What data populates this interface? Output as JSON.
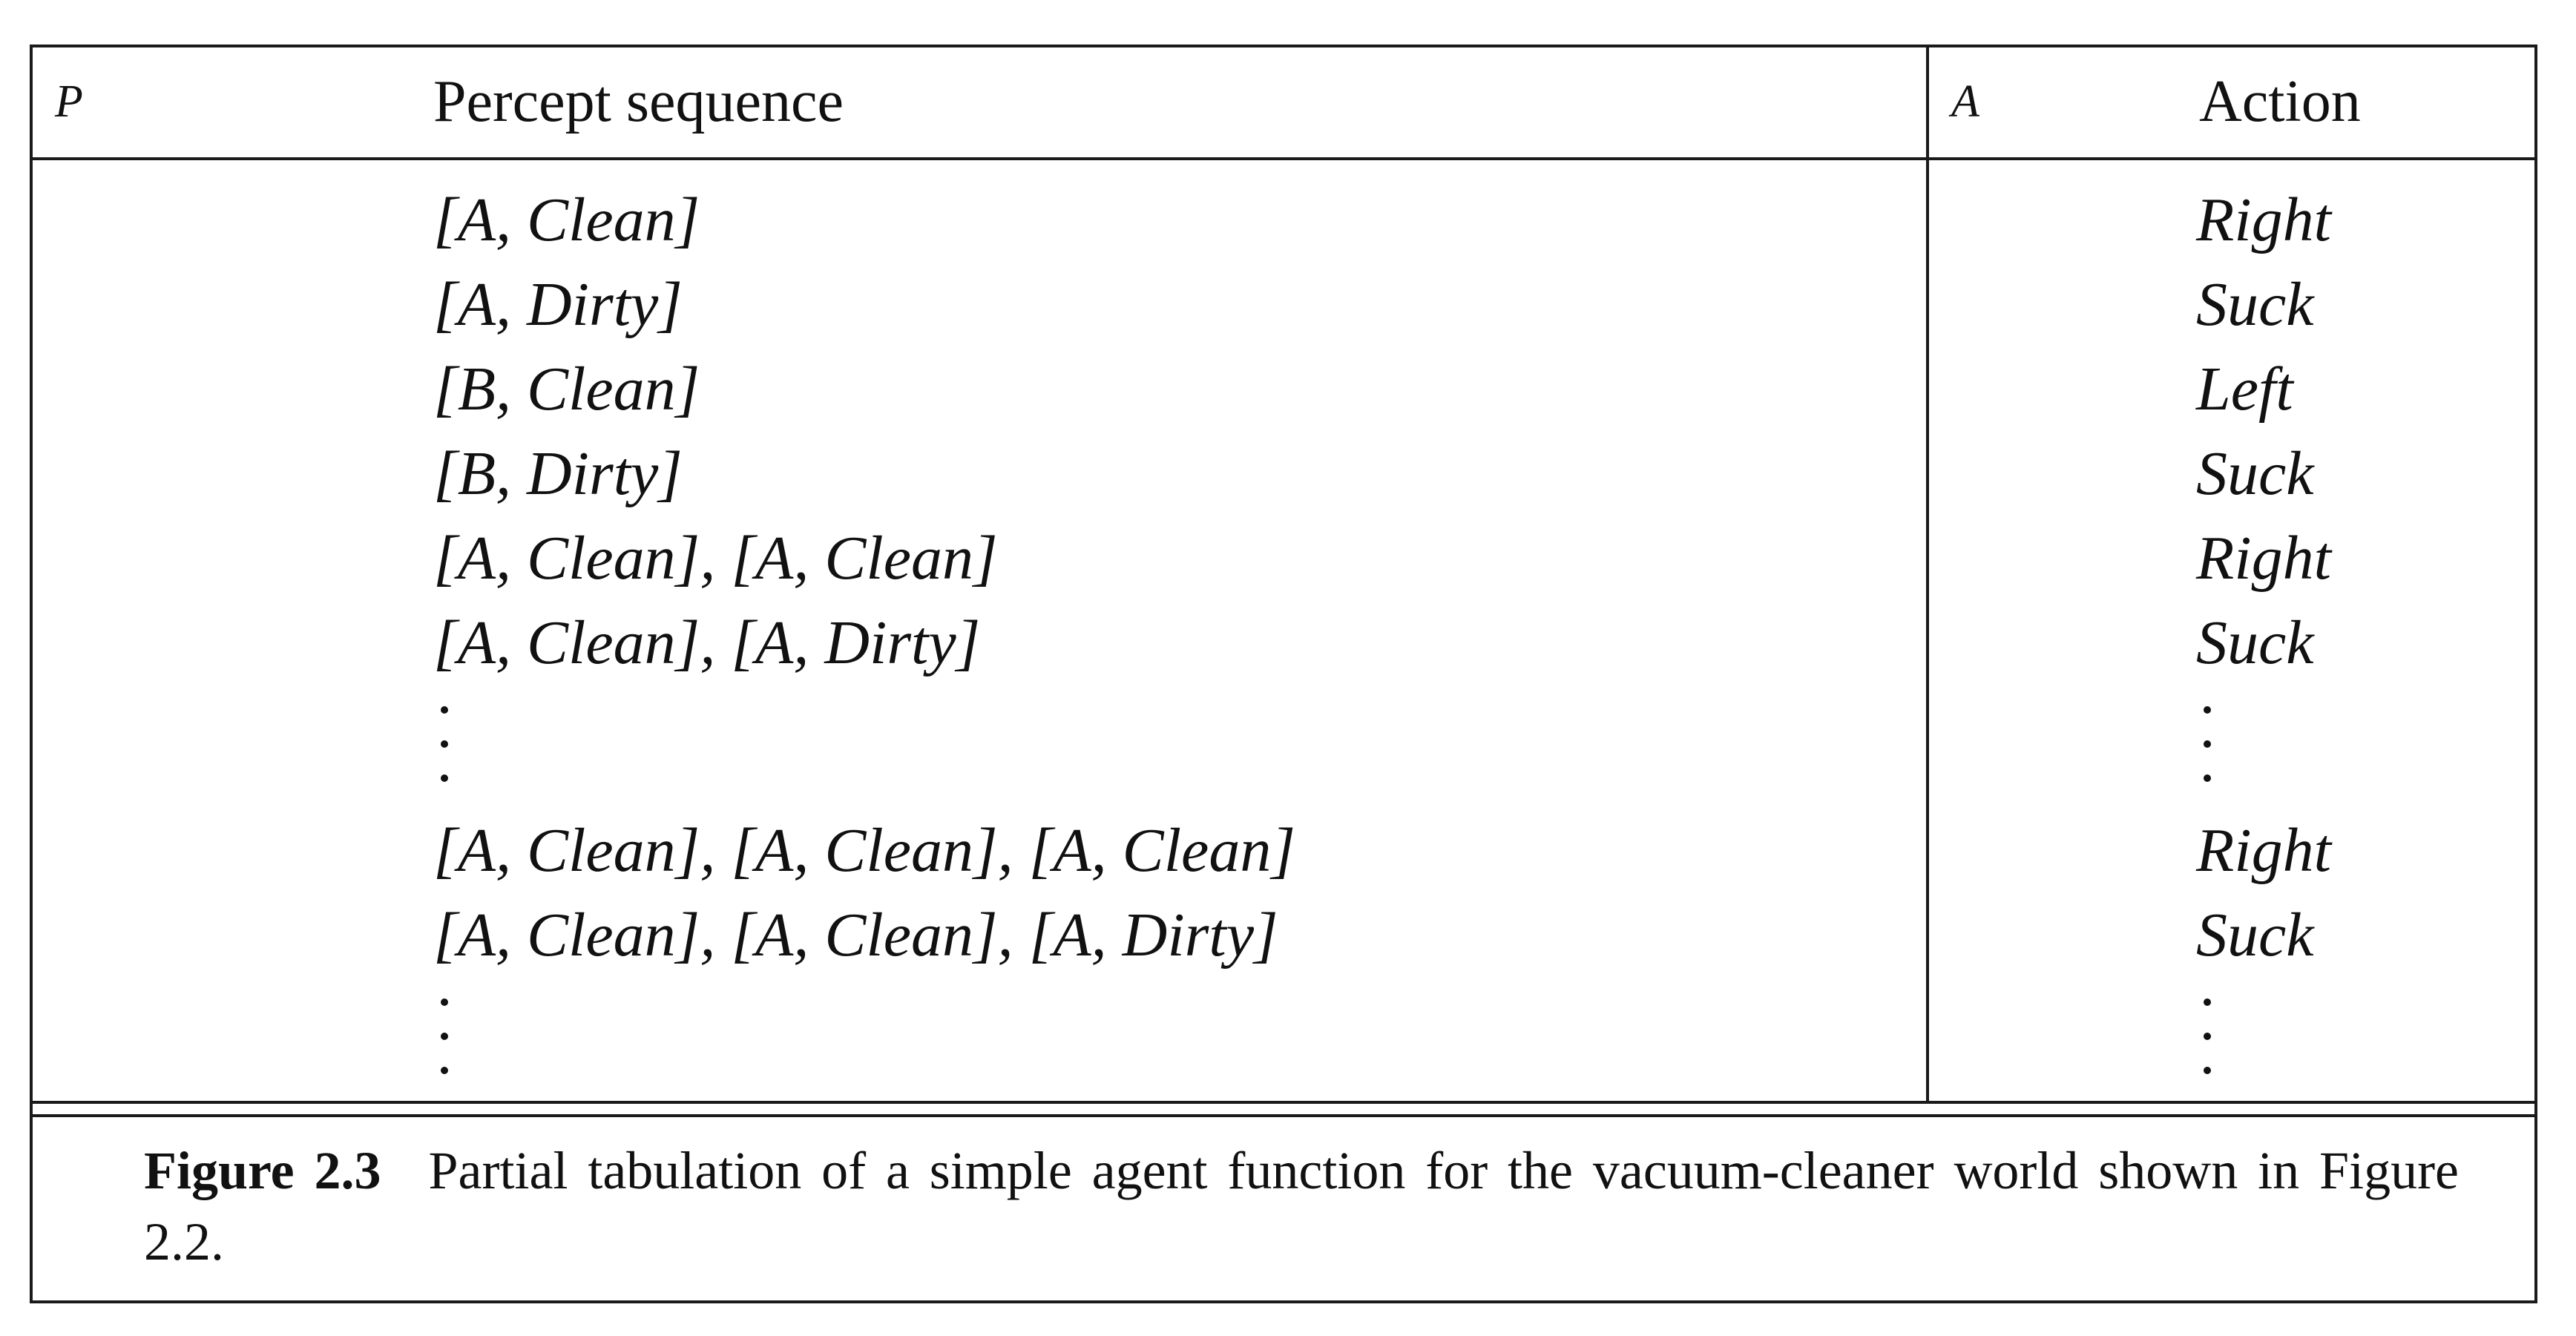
{
  "table": {
    "percept_symbol": "P",
    "action_symbol": "A",
    "percept_header": "Percept sequence",
    "action_header": "Action",
    "rows": [
      {
        "percept": "[A, Clean]",
        "action": "Right"
      },
      {
        "percept": "[A, Dirty]",
        "action": "Suck"
      },
      {
        "percept": "[B, Clean]",
        "action": "Left"
      },
      {
        "percept": "[B, Dirty]",
        "action": "Suck"
      },
      {
        "percept": "[A, Clean], [A, Clean]",
        "action": "Right"
      },
      {
        "percept": "[A, Clean], [A, Dirty]",
        "action": "Suck"
      },
      {
        "percept": "⋮",
        "action": "⋮"
      },
      {
        "percept": "[A, Clean], [A, Clean], [A, Clean]",
        "action": "Right"
      },
      {
        "percept": "[A, Clean], [A, Clean], [A, Dirty]",
        "action": "Suck"
      },
      {
        "percept": "⋮",
        "action": "⋮"
      }
    ]
  },
  "caption": {
    "label": "Figure 2.3",
    "text": "Partial tabulation of a simple agent function for the vacuum-cleaner world shown in Figure 2.2."
  }
}
